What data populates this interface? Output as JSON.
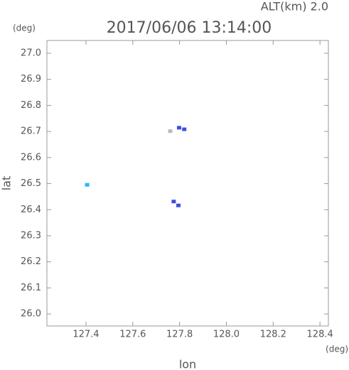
{
  "chart_data": {
    "type": "scatter",
    "title": "2017/06/06 13:14:00",
    "altitude_label": "ALT(km) 2.0",
    "y_unit": "(deg)",
    "x_unit": "(deg)",
    "xlabel": "lon",
    "ylabel": "lat",
    "x": [
      127.405,
      127.798,
      127.82,
      127.775,
      127.795,
      127.76
    ],
    "y": [
      26.494,
      26.713,
      26.707,
      26.43,
      26.415,
      26.7
    ],
    "colors": [
      "#29b6f6",
      "#3d4fe0",
      "#3d4fe0",
      "#3d4fe0",
      "#3d4fe0",
      "#bbbbbb"
    ],
    "xlim": [
      127.233,
      128.436
    ],
    "ylim": [
      25.954,
      27.049
    ],
    "xticks": [
      127.4,
      127.6,
      127.8,
      {
        "value": 128.0,
        "label": "128.0"
      },
      128.2,
      128.4
    ],
    "yticks": [
      {
        "value": 26.0,
        "label": "26.0"
      },
      26.1,
      26.2,
      26.3,
      26.4,
      26.5,
      26.6,
      26.7,
      26.8,
      26.9,
      {
        "value": 27.0,
        "label": "27.0"
      }
    ]
  }
}
